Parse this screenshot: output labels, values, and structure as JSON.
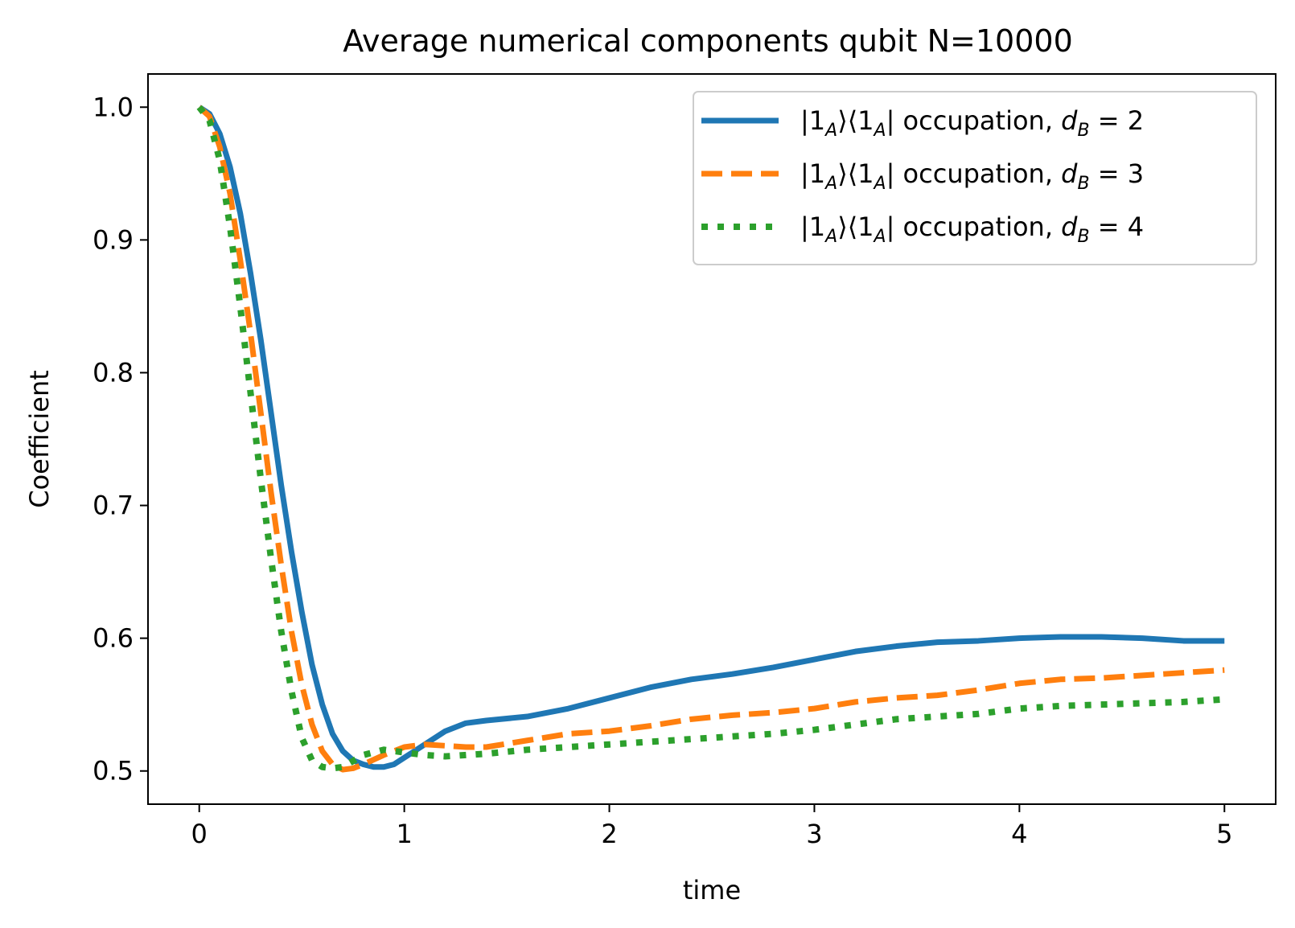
{
  "chart_data": {
    "type": "line",
    "title": "Average numerical components qubit N=10000",
    "xlabel": "time",
    "ylabel": "Coefficient",
    "xlim": [
      -0.25,
      5.25
    ],
    "ylim": [
      0.475,
      1.025
    ],
    "xticks": [
      0,
      1,
      2,
      3,
      4,
      5
    ],
    "xtick_labels": [
      "0",
      "1",
      "2",
      "3",
      "4",
      "5"
    ],
    "yticks": [
      0.5,
      0.6,
      0.7,
      0.8,
      0.9,
      1.0
    ],
    "ytick_labels": [
      "0.5",
      "0.6",
      "0.7",
      "0.8",
      "0.9",
      "1.0"
    ],
    "grid": false,
    "legend_position": "top-right",
    "series": [
      {
        "name": "|1_A⟩⟨1_A| occupation, d_B = 2",
        "legend_prefix": "|1",
        "legend_sub": "A",
        "legend_mid": "⟩⟨1",
        "legend_sub2": "A",
        "legend_suffix": "| occupation, ",
        "legend_var": "d",
        "legend_var_sub": "B",
        "legend_value": " = 2",
        "color": "#1f77b4",
        "style": "solid",
        "x": [
          0,
          0.05,
          0.1,
          0.15,
          0.2,
          0.25,
          0.3,
          0.35,
          0.4,
          0.45,
          0.5,
          0.55,
          0.6,
          0.65,
          0.7,
          0.75,
          0.8,
          0.85,
          0.9,
          0.95,
          1.0,
          1.1,
          1.2,
          1.3,
          1.4,
          1.6,
          1.8,
          2.0,
          2.2,
          2.4,
          2.6,
          2.8,
          3.0,
          3.2,
          3.4,
          3.6,
          3.8,
          4.0,
          4.2,
          4.4,
          4.6,
          4.8,
          5.0
        ],
        "y": [
          1.0,
          0.995,
          0.98,
          0.955,
          0.92,
          0.875,
          0.825,
          0.77,
          0.715,
          0.665,
          0.62,
          0.58,
          0.55,
          0.528,
          0.515,
          0.508,
          0.505,
          0.503,
          0.503,
          0.505,
          0.51,
          0.52,
          0.53,
          0.536,
          0.538,
          0.541,
          0.547,
          0.555,
          0.563,
          0.569,
          0.573,
          0.578,
          0.584,
          0.59,
          0.594,
          0.597,
          0.598,
          0.6,
          0.601,
          0.601,
          0.6,
          0.598,
          0.598
        ]
      },
      {
        "name": "|1_A⟩⟨1_A| occupation, d_B = 3",
        "legend_prefix": "|1",
        "legend_sub": "A",
        "legend_mid": "⟩⟨1",
        "legend_sub2": "A",
        "legend_suffix": "| occupation, ",
        "legend_var": "d",
        "legend_var_sub": "B",
        "legend_value": " = 3",
        "color": "#ff7f0e",
        "style": "dashed",
        "x": [
          0,
          0.05,
          0.1,
          0.15,
          0.2,
          0.25,
          0.3,
          0.35,
          0.4,
          0.45,
          0.5,
          0.55,
          0.6,
          0.65,
          0.7,
          0.75,
          0.8,
          0.9,
          1.0,
          1.1,
          1.2,
          1.3,
          1.4,
          1.6,
          1.8,
          2.0,
          2.2,
          2.4,
          2.6,
          2.8,
          3.0,
          3.2,
          3.4,
          3.6,
          3.8,
          4.0,
          4.2,
          4.4,
          4.6,
          4.8,
          5.0
        ],
        "y": [
          1.0,
          0.993,
          0.97,
          0.935,
          0.885,
          0.83,
          0.77,
          0.71,
          0.655,
          0.605,
          0.565,
          0.535,
          0.515,
          0.505,
          0.501,
          0.502,
          0.505,
          0.512,
          0.518,
          0.52,
          0.519,
          0.518,
          0.518,
          0.523,
          0.528,
          0.53,
          0.534,
          0.539,
          0.542,
          0.544,
          0.547,
          0.552,
          0.555,
          0.557,
          0.561,
          0.566,
          0.569,
          0.57,
          0.572,
          0.574,
          0.576
        ]
      },
      {
        "name": "|1_A⟩⟨1_A| occupation, d_B = 4",
        "legend_prefix": "|1",
        "legend_sub": "A",
        "legend_mid": "⟩⟨1",
        "legend_sub2": "A",
        "legend_suffix": "| occupation, ",
        "legend_var": "d",
        "legend_var_sub": "B",
        "legend_value": " = 4",
        "color": "#2ca02c",
        "style": "dotted",
        "x": [
          0,
          0.05,
          0.1,
          0.15,
          0.2,
          0.25,
          0.3,
          0.35,
          0.4,
          0.45,
          0.5,
          0.55,
          0.6,
          0.65,
          0.7,
          0.8,
          0.9,
          1.0,
          1.1,
          1.2,
          1.4,
          1.6,
          1.8,
          2.0,
          2.2,
          2.4,
          2.6,
          2.8,
          3.0,
          3.2,
          3.4,
          3.6,
          3.8,
          4.0,
          4.2,
          4.4,
          4.6,
          4.8,
          5.0
        ],
        "y": [
          1.0,
          0.99,
          0.96,
          0.91,
          0.85,
          0.785,
          0.72,
          0.66,
          0.605,
          0.56,
          0.525,
          0.508,
          0.503,
          0.502,
          0.503,
          0.512,
          0.516,
          0.514,
          0.512,
          0.511,
          0.513,
          0.516,
          0.518,
          0.52,
          0.522,
          0.524,
          0.526,
          0.528,
          0.531,
          0.535,
          0.539,
          0.541,
          0.543,
          0.547,
          0.549,
          0.55,
          0.551,
          0.552,
          0.554
        ]
      }
    ]
  }
}
